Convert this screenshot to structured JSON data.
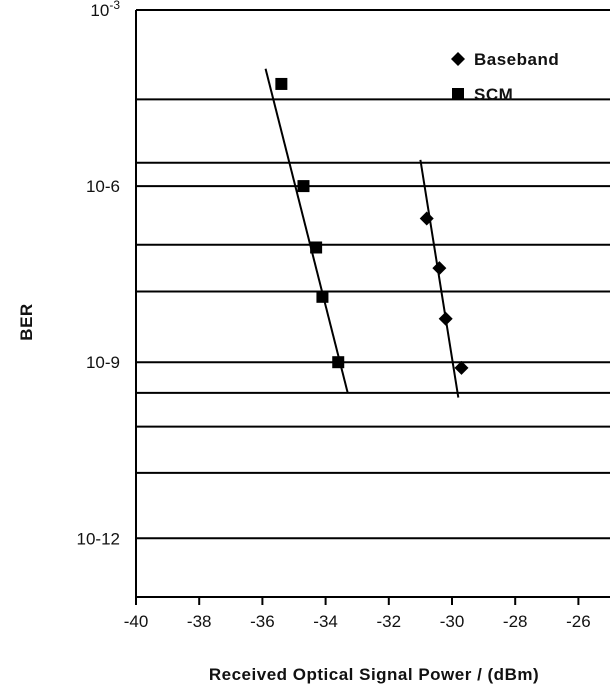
{
  "chart_data": {
    "type": "scatter",
    "xlabel": "Received Optical Signal Power / (dBm)",
    "ylabel": "BER",
    "xlim": [
      -40,
      -25
    ],
    "x_ticks": [
      -40,
      -38,
      -36,
      -34,
      -32,
      -30,
      -28,
      -26
    ],
    "x_tick_labels": [
      "-40",
      "-38",
      "-36",
      "-34",
      "-32",
      "-30",
      "-28",
      "-26"
    ],
    "y_scale": "log",
    "ylim": [
      1e-13,
      0.001
    ],
    "y_tick_labels": [
      {
        "value": 0.001,
        "base": "10",
        "exp": "-3"
      },
      {
        "value": 1e-06,
        "base": "10-6",
        "exp": ""
      },
      {
        "value": 1e-09,
        "base": "10-9",
        "exp": ""
      },
      {
        "value": 1e-12,
        "base": "10-12",
        "exp": ""
      }
    ],
    "grid": "horizontal",
    "gridlines_y": [
      0.001,
      3e-05,
      2.5e-06,
      1e-06,
      1e-07,
      1.6e-08,
      1e-09,
      3e-10,
      8e-11,
      1.3e-11,
      1e-12
    ],
    "legend_position": "top-right",
    "series": [
      {
        "name": "SCM",
        "marker": "square",
        "x": [
          -35.4,
          -34.7,
          -34.3,
          -34.1,
          -33.6
        ],
        "y": [
          5.5e-05,
          1e-06,
          9e-08,
          1.3e-08,
          1e-09
        ],
        "fit_line": {
          "x": [
            -35.9,
            -33.3
          ],
          "y": [
            0.0001,
            3e-10
          ]
        }
      },
      {
        "name": "Baseband",
        "marker": "diamond",
        "x": [
          -30.8,
          -30.4,
          -30.2,
          -29.7
        ],
        "y": [
          2.8e-07,
          4e-08,
          5.5e-09,
          8e-10
        ],
        "fit_line": {
          "x": [
            -31.0,
            -29.8
          ],
          "y": [
            2.8e-06,
            2.5e-10
          ]
        }
      }
    ]
  }
}
